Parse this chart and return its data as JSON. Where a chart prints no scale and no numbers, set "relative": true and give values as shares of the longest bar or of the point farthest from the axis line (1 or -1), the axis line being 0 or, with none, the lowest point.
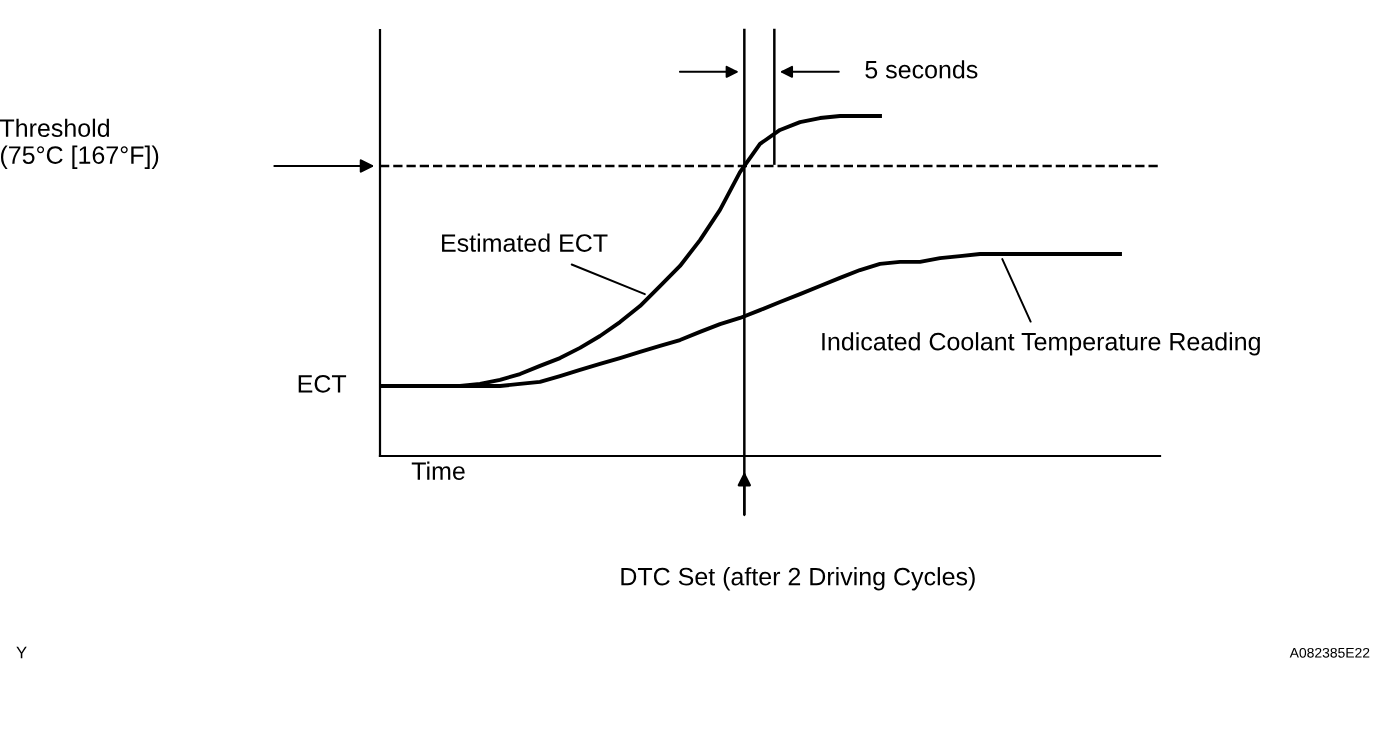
{
  "chart_data": {
    "type": "line",
    "relative": true,
    "xlabel": "Time",
    "categories": [
      null,
      null,
      null,
      null,
      null,
      null,
      null,
      null,
      null,
      null,
      null,
      null,
      null,
      null,
      null,
      null,
      null,
      null,
      null,
      null,
      null,
      null,
      null,
      null,
      null,
      null,
      null,
      null,
      null,
      null,
      null,
      null,
      null,
      null,
      null,
      null,
      null,
      null,
      null,
      null
    ],
    "series": [
      {
        "color": "#000000",
        "values": [
          0.206,
          0.206,
          0.206,
          0.206,
          0.206,
          0.212,
          0.224,
          0.241,
          0.265,
          0.288,
          0.318,
          0.353,
          0.394,
          0.441,
          0.5,
          0.559,
          0.635,
          0.724,
          0.835,
          0.918,
          0.959,
          0.982,
          0.994,
          1,
          1,
          1,
          null,
          null,
          null,
          null,
          null,
          null,
          null,
          null,
          null,
          null,
          null,
          null,
          null,
          null
        ]
      },
      {
        "color": "#000000",
        "values": [
          0.206,
          0.206,
          0.206,
          0.206,
          0.206,
          0.206,
          0.206,
          0.212,
          0.218,
          0.235,
          0.253,
          0.271,
          0.288,
          0.306,
          0.324,
          0.341,
          0.365,
          0.388,
          0.406,
          0.429,
          0.453,
          0.476,
          0.5,
          0.524,
          0.547,
          0.565,
          0.571,
          0.571,
          0.582,
          0.588,
          0.594,
          0.594,
          0.594,
          0.594,
          0.594,
          0.594,
          0.594,
          0.594,
          null,
          null
        ]
      }
    ],
    "ref_lines": [
      {
        "axis": "y",
        "value": 0.853,
        "label": "Threshold\n(75°C [167°F])",
        "color": "#000000",
        "line_style": "dashed"
      }
    ],
    "annotations": [
      "Estimated ECT",
      "Indicated Coolant Temperature Reading",
      "ECT",
      "5 seconds",
      "Y",
      "A082385E22",
      "DTC Set (after 2 Driving Cycles)"
    ],
    "marker": "none",
    "line_style": "solid"
  }
}
